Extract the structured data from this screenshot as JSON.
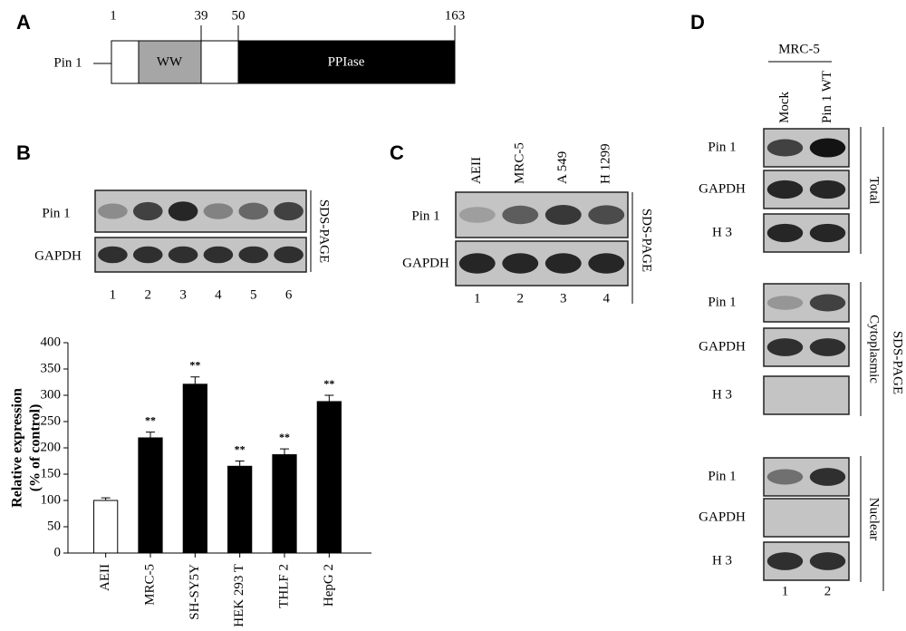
{
  "panel_a": {
    "label": "A",
    "protein": "Pin 1",
    "positions": [
      1,
      39,
      50,
      163
    ],
    "domains": [
      "WW",
      "PPIase"
    ]
  },
  "panel_b": {
    "label": "B",
    "rows": [
      "Pin 1",
      "GAPDH"
    ],
    "lanes": [
      1,
      2,
      3,
      4,
      5,
      6
    ],
    "method": "SDS-PAGE"
  },
  "chart_data": {
    "type": "bar",
    "y_label": [
      "Relative expression",
      "(% of control)"
    ],
    "categories": [
      "AEII",
      "MRC-5",
      "SH-SY5Y",
      "HEK 293 T",
      "THLF 2",
      "HepG 2"
    ],
    "values": [
      100,
      219,
      321,
      165,
      187,
      288
    ],
    "errors": [
      5,
      11,
      14,
      10,
      11,
      12
    ],
    "colors": [
      "#ffffff",
      "#000000",
      "#000000",
      "#000000",
      "#000000",
      "#000000"
    ],
    "significance": [
      null,
      "**",
      "**",
      "**",
      "**",
      "**"
    ],
    "ylim": [
      0,
      400
    ],
    "yticks": [
      0,
      50,
      100,
      150,
      200,
      250,
      300,
      350,
      400
    ]
  },
  "panel_c": {
    "label": "C",
    "samples": [
      "AEII",
      "MRC-5",
      "A 549",
      "H 1299"
    ],
    "rows": [
      "Pin 1",
      "GAPDH"
    ],
    "lanes": [
      1,
      2,
      3,
      4
    ],
    "method": "SDS-PAGE"
  },
  "panel_d": {
    "label": "D",
    "cell_line": "MRC-5",
    "samples": [
      "Mock",
      "Pin 1 WT"
    ],
    "fractions": [
      {
        "name": "Total",
        "rows": [
          "Pin 1",
          "GAPDH",
          "H 3"
        ]
      },
      {
        "name": "Cytoplasmic",
        "rows": [
          "Pin 1",
          "GAPDH",
          "H 3"
        ]
      },
      {
        "name": "Nuclear",
        "rows": [
          "Pin 1",
          "GAPDH",
          "H 3"
        ]
      }
    ],
    "lanes": [
      1,
      2
    ],
    "method": "SDS-PAGE"
  }
}
